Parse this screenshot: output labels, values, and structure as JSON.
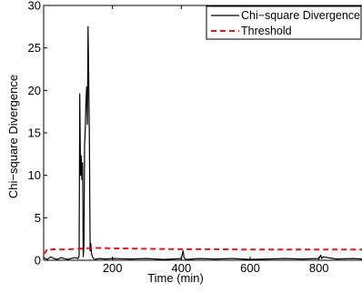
{
  "chart_data": {
    "type": "line",
    "title": "",
    "xlabel": "Time (min)",
    "ylabel": "Chi−square Divergence",
    "xlim": [
      0,
      925
    ],
    "ylim": [
      0,
      30
    ],
    "xticks": [
      200,
      400,
      600,
      800
    ],
    "yticks": [
      0,
      5,
      10,
      15,
      20,
      25,
      30
    ],
    "grid": false,
    "legend_position": "top-right",
    "series": [
      {
        "name": "Chi−square Divergence",
        "color": "#000000",
        "style": "solid",
        "x": [
          0,
          10,
          20,
          30,
          40,
          50,
          60,
          70,
          80,
          90,
          100,
          103,
          105,
          107,
          109,
          111,
          113,
          115,
          117,
          119,
          121,
          123,
          125,
          127,
          129,
          131,
          133,
          135,
          137,
          139,
          141,
          143,
          145,
          150,
          160,
          180,
          200,
          250,
          300,
          350,
          400,
          405,
          408,
          411,
          415,
          450,
          500,
          550,
          600,
          650,
          700,
          750,
          800,
          805,
          808,
          812,
          850,
          900,
          925
        ],
        "y": [
          0.3,
          0.1,
          0.4,
          0.2,
          0.1,
          0.3,
          0.2,
          0.1,
          0.2,
          0.3,
          0.2,
          0.5,
          19.6,
          10.0,
          12.3,
          9.5,
          11.5,
          0.4,
          1.8,
          13.5,
          15.6,
          18.7,
          20.4,
          16.0,
          27.5,
          21.0,
          14.0,
          1.1,
          2.0,
          0.8,
          0.5,
          0.3,
          0.2,
          0.1,
          0.2,
          0.15,
          0.2,
          0.15,
          0.2,
          0.1,
          0.2,
          1.1,
          0.3,
          0.15,
          0.1,
          0.2,
          0.15,
          0.2,
          0.1,
          0.15,
          0.2,
          0.15,
          0.2,
          0.6,
          0.2,
          0.4,
          0.15,
          0.2,
          0.15
        ]
      },
      {
        "name": "Threshold",
        "color": "#e8151b",
        "style": "dashed",
        "x": [
          0,
          5,
          10,
          15,
          30,
          60,
          100,
          140,
          160,
          200,
          300,
          400,
          500,
          600,
          700,
          800,
          925
        ],
        "y": [
          0.8,
          0.9,
          1.3,
          1.2,
          1.3,
          1.25,
          1.35,
          1.45,
          1.45,
          1.4,
          1.35,
          1.3,
          1.3,
          1.25,
          1.25,
          1.25,
          1.25
        ]
      }
    ]
  }
}
